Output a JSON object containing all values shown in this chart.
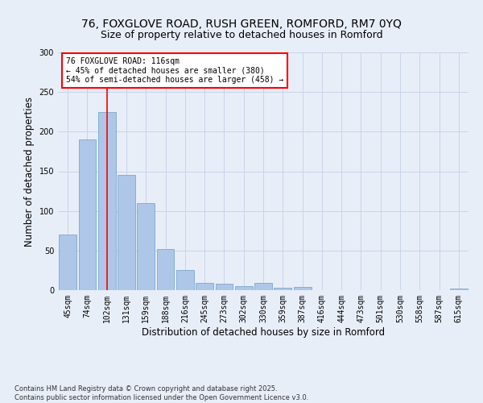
{
  "title_line1": "76, FOXGLOVE ROAD, RUSH GREEN, ROMFORD, RM7 0YQ",
  "title_line2": "Size of property relative to detached houses in Romford",
  "xlabel": "Distribution of detached houses by size in Romford",
  "ylabel": "Number of detached properties",
  "categories": [
    "45sqm",
    "74sqm",
    "102sqm",
    "131sqm",
    "159sqm",
    "188sqm",
    "216sqm",
    "245sqm",
    "273sqm",
    "302sqm",
    "330sqm",
    "359sqm",
    "387sqm",
    "416sqm",
    "444sqm",
    "473sqm",
    "501sqm",
    "530sqm",
    "558sqm",
    "587sqm",
    "615sqm"
  ],
  "values": [
    70,
    190,
    225,
    145,
    110,
    52,
    25,
    9,
    8,
    5,
    9,
    3,
    4,
    0,
    0,
    0,
    0,
    0,
    0,
    0,
    2
  ],
  "bar_color": "#aec6e8",
  "bar_edge_color": "#6a9fc8",
  "grid_color": "#c8d4e8",
  "background_color": "#e8eef8",
  "vline_x": 2.0,
  "vline_color": "red",
  "annotation_text": "76 FOXGLOVE ROAD: 116sqm\n← 45% of detached houses are smaller (380)\n54% of semi-detached houses are larger (458) →",
  "annotation_box_color": "white",
  "annotation_box_edge": "red",
  "ylim": [
    0,
    300
  ],
  "yticks": [
    0,
    50,
    100,
    150,
    200,
    250,
    300
  ],
  "footnote": "Contains HM Land Registry data © Crown copyright and database right 2025.\nContains public sector information licensed under the Open Government Licence v3.0.",
  "title_fontsize": 10,
  "subtitle_fontsize": 9,
  "axis_label_fontsize": 8.5,
  "tick_fontsize": 7,
  "annotation_fontsize": 7,
  "footnote_fontsize": 6
}
